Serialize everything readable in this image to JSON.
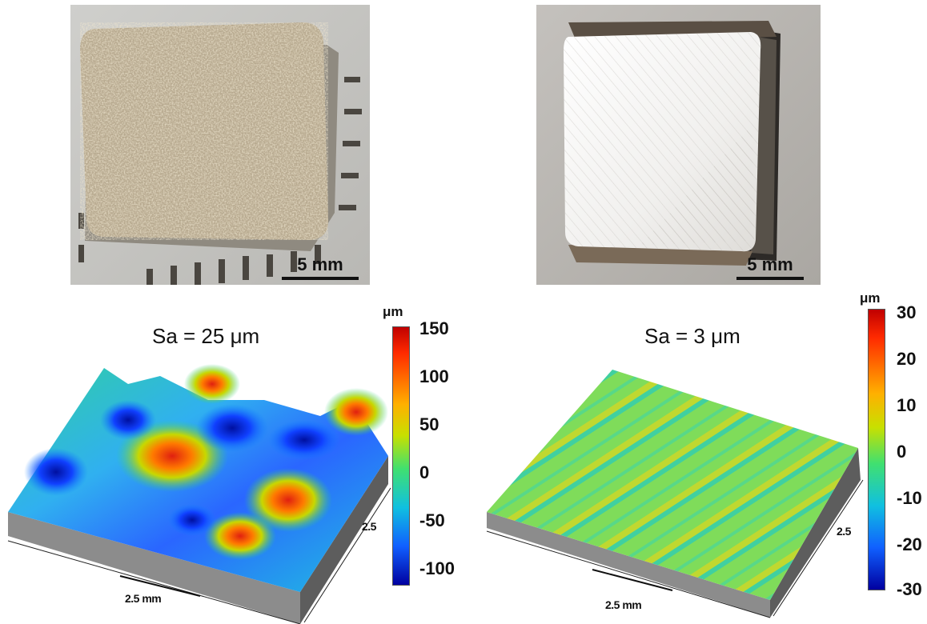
{
  "panels": [
    {
      "scale_label": "5 mm",
      "sa_label": "Sa = 25 μm",
      "colorbar": {
        "unit": "μm",
        "ticks": [
          "150",
          "100",
          "50",
          "0",
          "-50",
          "-100"
        ]
      },
      "axis_x_label": "2.5 mm",
      "axis_y_label": "2.5"
    },
    {
      "scale_label": "5 mm",
      "sa_label": "Sa = 3 μm",
      "colorbar": {
        "unit": "μm",
        "ticks": [
          "30",
          "20",
          "10",
          "0",
          "-10",
          "-20",
          "-30"
        ]
      },
      "axis_x_label": "2.5 mm",
      "axis_y_label": "2.5"
    }
  ],
  "colors": {
    "colormap_jet": [
      "#a50000",
      "#ff2a00",
      "#ffb000",
      "#c8e000",
      "#40e070",
      "#10c0e0",
      "#1060ff",
      "#0000a0"
    ]
  }
}
